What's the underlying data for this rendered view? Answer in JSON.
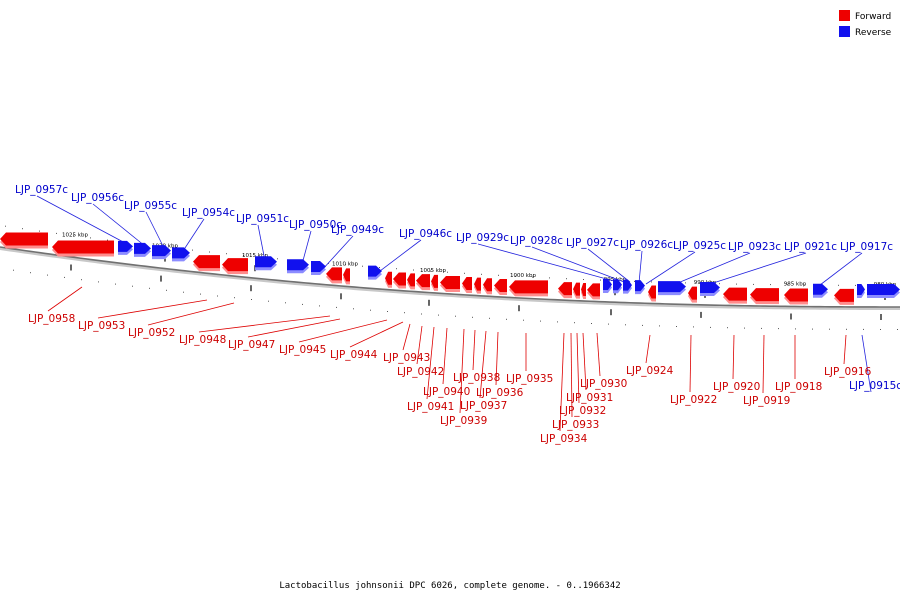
{
  "legend": {
    "forward": {
      "label": "Forward",
      "color": "#ee0000"
    },
    "reverse": {
      "label": "Reverse",
      "color": "#1111ee"
    }
  },
  "caption": "Lactobacillus johnsonii DPC 6026, complete genome. - 0..1966342",
  "ticks": [
    "1025 kbp",
    "1020 kbp",
    "1015 kbp",
    "1010 kbp",
    "1005 kbp",
    "1000 kbp",
    "995 kbp",
    "990 kbp",
    "985 kbp",
    "980 kbp"
  ],
  "genes": [
    {
      "name": "LJP_0958",
      "strand": "forward"
    },
    {
      "name": "LJP_0957c",
      "strand": "reverse"
    },
    {
      "name": "LJP_0956c",
      "strand": "reverse"
    },
    {
      "name": "LJP_0955c",
      "strand": "reverse"
    },
    {
      "name": "LJP_0954c",
      "strand": "reverse"
    },
    {
      "name": "LJP_0953",
      "strand": "forward"
    },
    {
      "name": "LJP_0952",
      "strand": "forward"
    },
    {
      "name": "LJP_0951c",
      "strand": "reverse"
    },
    {
      "name": "LJP_0950c",
      "strand": "reverse"
    },
    {
      "name": "LJP_0949c",
      "strand": "reverse"
    },
    {
      "name": "LJP_0948",
      "strand": "forward"
    },
    {
      "name": "LJP_0947",
      "strand": "forward"
    },
    {
      "name": "LJP_0946c",
      "strand": "reverse"
    },
    {
      "name": "LJP_0945",
      "strand": "forward"
    },
    {
      "name": "LJP_0944",
      "strand": "forward"
    },
    {
      "name": "LJP_0943",
      "strand": "forward"
    },
    {
      "name": "LJP_0942",
      "strand": "forward"
    },
    {
      "name": "LJP_0941",
      "strand": "forward"
    },
    {
      "name": "LJP_0940",
      "strand": "forward"
    },
    {
      "name": "LJP_0939",
      "strand": "forward"
    },
    {
      "name": "LJP_0938",
      "strand": "forward"
    },
    {
      "name": "LJP_0937",
      "strand": "forward"
    },
    {
      "name": "LJP_0936",
      "strand": "forward"
    },
    {
      "name": "LJP_0935",
      "strand": "forward"
    },
    {
      "name": "LJP_0934",
      "strand": "forward"
    },
    {
      "name": "LJP_0933",
      "strand": "forward"
    },
    {
      "name": "LJP_0932",
      "strand": "forward"
    },
    {
      "name": "LJP_0931",
      "strand": "forward"
    },
    {
      "name": "LJP_0930",
      "strand": "forward"
    },
    {
      "name": "LJP_0929c",
      "strand": "reverse"
    },
    {
      "name": "LJP_0928c",
      "strand": "reverse"
    },
    {
      "name": "LJP_0927c",
      "strand": "reverse"
    },
    {
      "name": "LJP_0926c",
      "strand": "reverse"
    },
    {
      "name": "LJP_0925c",
      "strand": "reverse"
    },
    {
      "name": "LJP_0924",
      "strand": "forward"
    },
    {
      "name": "LJP_0923c",
      "strand": "reverse"
    },
    {
      "name": "LJP_0922",
      "strand": "forward"
    },
    {
      "name": "LJP_0921c",
      "strand": "reverse"
    },
    {
      "name": "LJP_0920",
      "strand": "forward"
    },
    {
      "name": "LJP_0919",
      "strand": "forward"
    },
    {
      "name": "LJP_0918",
      "strand": "forward"
    },
    {
      "name": "LJP_0917c",
      "strand": "reverse"
    },
    {
      "name": "LJP_0916",
      "strand": "forward"
    },
    {
      "name": "LJP_0915c",
      "strand": "reverse"
    }
  ]
}
